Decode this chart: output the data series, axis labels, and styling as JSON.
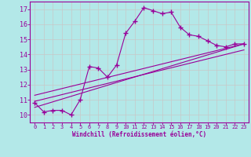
{
  "xlabel": "Windchill (Refroidissement éolien,°C)",
  "bg_color": "#b3e8e8",
  "grid_color": "#c8c8c8",
  "line_color": "#990099",
  "ylim": [
    9.5,
    17.5
  ],
  "xlim": [
    -0.5,
    23.5
  ],
  "yticks": [
    10,
    11,
    12,
    13,
    14,
    15,
    16,
    17
  ],
  "xticks": [
    0,
    1,
    2,
    3,
    4,
    5,
    6,
    7,
    8,
    9,
    10,
    11,
    12,
    13,
    14,
    15,
    16,
    17,
    18,
    19,
    20,
    21,
    22,
    23
  ],
  "main_x": [
    0,
    1,
    2,
    3,
    4,
    5,
    6,
    7,
    8,
    9,
    10,
    11,
    12,
    13,
    14,
    15,
    16,
    17,
    18,
    19,
    20,
    21,
    22,
    23
  ],
  "main_y": [
    10.8,
    10.2,
    10.3,
    10.3,
    10.0,
    11.0,
    13.2,
    13.1,
    12.5,
    13.3,
    15.4,
    16.2,
    17.1,
    16.9,
    16.7,
    16.8,
    15.8,
    15.3,
    15.2,
    14.9,
    14.6,
    14.5,
    14.7,
    14.7
  ],
  "line1_x": [
    0,
    23
  ],
  "line1_y": [
    10.5,
    14.7
  ],
  "line2_x": [
    0,
    23
  ],
  "line2_y": [
    10.9,
    14.3
  ],
  "line3_x": [
    0,
    23
  ],
  "line3_y": [
    11.3,
    14.7
  ]
}
